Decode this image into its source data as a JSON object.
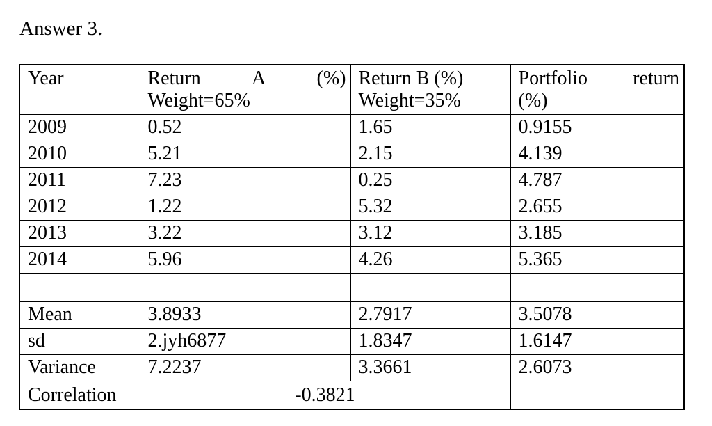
{
  "page": {
    "title": "Answer 3."
  },
  "colors": {
    "text": "#000000",
    "background": "#ffffff",
    "border": "#000000"
  },
  "table": {
    "header": {
      "year": "Year",
      "a_line1": "Return A (%)",
      "a_line2": "Weight=65%",
      "b_line1": "Return B (%)",
      "b_line2": "Weight=35%",
      "p_line1": "Portfolio return",
      "p_line2": "(%)"
    },
    "rows": [
      {
        "year": "2009",
        "a": "0.52",
        "b": "1.65",
        "p": "0.9155"
      },
      {
        "year": "2010",
        "a": "5.21",
        "b": "2.15",
        "p": "4.139"
      },
      {
        "year": "2011",
        "a": "7.23",
        "b": "0.25",
        "p": "4.787"
      },
      {
        "year": "2012",
        "a": "1.22",
        "b": "5.32",
        "p": "2.655"
      },
      {
        "year": "2013",
        "a": "3.22",
        "b": "3.12",
        "p": "3.185"
      },
      {
        "year": "2014",
        "a": "5.96",
        "b": "4.26",
        "p": "5.365"
      }
    ],
    "stats": [
      {
        "label": "Mean",
        "a": "3.8933",
        "b": "2.7917",
        "p": "3.5078"
      },
      {
        "label": "sd",
        "a": "2.jyh6877",
        "b": "1.8347",
        "p": "1.6147"
      },
      {
        "label": "Variance",
        "a": "7.2237",
        "b": "3.3661",
        "p": "2.6073"
      }
    ],
    "correlation": {
      "label": "Correlation",
      "value": "-0.3821"
    }
  },
  "chart_data": {
    "type": "table",
    "title": "Answer 3.",
    "columns": [
      "Year",
      "Return A (%) Weight=65%",
      "Return B (%) Weight=35%",
      "Portfolio return (%)"
    ],
    "x": [
      2009,
      2010,
      2011,
      2012,
      2013,
      2014
    ],
    "series": [
      {
        "name": "Return A (%) Weight=65%",
        "values": [
          0.52,
          5.21,
          7.23,
          1.22,
          3.22,
          5.96
        ]
      },
      {
        "name": "Return B (%) Weight=35%",
        "values": [
          1.65,
          2.15,
          0.25,
          5.32,
          3.12,
          4.26
        ]
      },
      {
        "name": "Portfolio return (%)",
        "values": [
          0.9155,
          4.139,
          4.787,
          2.655,
          3.185,
          5.365
        ]
      }
    ],
    "summary": {
      "mean": {
        "a": 3.8933,
        "b": 2.7917,
        "p": 3.5078
      },
      "sd_as_shown": {
        "a": "2.jyh6877",
        "b": 1.8347,
        "p": 1.6147
      },
      "variance": {
        "a": 7.2237,
        "b": 3.3661,
        "p": 2.6073
      },
      "correlation": -0.3821
    }
  }
}
